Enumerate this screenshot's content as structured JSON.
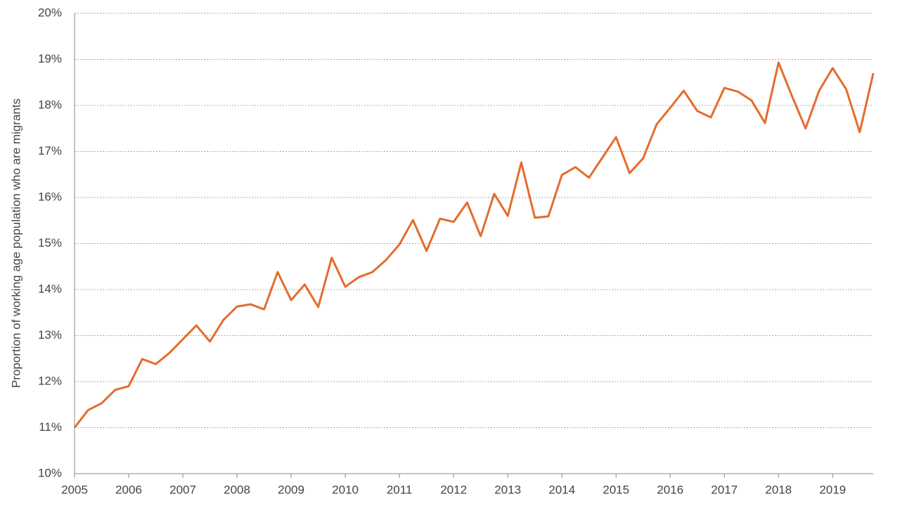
{
  "chart_data": {
    "type": "line",
    "y_label": "Proportion of working  age population who  are migrants",
    "x": [
      2005,
      2005.25,
      2005.5,
      2005.75,
      2006,
      2006.25,
      2006.5,
      2006.75,
      2007,
      2007.25,
      2007.5,
      2007.75,
      2008,
      2008.25,
      2008.5,
      2008.75,
      2009,
      2009.25,
      2009.5,
      2009.75,
      2010,
      2010.25,
      2010.5,
      2010.75,
      2011,
      2011.25,
      2011.5,
      2011.75,
      2012,
      2012.25,
      2012.5,
      2012.75,
      2013,
      2013.25,
      2013.5,
      2013.75,
      2014,
      2014.25,
      2014.5,
      2014.75,
      2015,
      2015.25,
      2015.5,
      2015.75,
      2016,
      2016.25,
      2016.5,
      2016.75,
      2017,
      2017.25,
      2017.5,
      2017.75,
      2018,
      2018.25,
      2018.5,
      2018.75,
      2019,
      2019.25,
      2019.5,
      2019.75
    ],
    "series": [
      {
        "color": "#e46c2e",
        "values": [
          11.0,
          11.38,
          11.53,
          11.82,
          11.9,
          12.49,
          12.38,
          12.62,
          12.92,
          13.22,
          12.87,
          13.34,
          13.63,
          13.68,
          13.57,
          14.38,
          13.77,
          14.11,
          13.62,
          14.69,
          14.06,
          14.27,
          14.38,
          14.64,
          14.98,
          15.51,
          14.84,
          15.54,
          15.47,
          15.89,
          15.16,
          16.08,
          15.6,
          16.76,
          15.56,
          15.59,
          16.49,
          16.66,
          16.43,
          16.87,
          17.31,
          16.53,
          16.85,
          17.59,
          17.95,
          18.32,
          17.88,
          17.74,
          18.38,
          18.3,
          18.11,
          17.62,
          18.93,
          18.2,
          17.5,
          18.32,
          18.81,
          18.35,
          17.42,
          18.7
        ]
      }
    ],
    "xlim": [
      2005,
      2019.75
    ],
    "xticks": [
      2005,
      2006,
      2007,
      2008,
      2009,
      2010,
      2011,
      2012,
      2013,
      2014,
      2015,
      2016,
      2017,
      2018,
      2019
    ],
    "ylim": [
      10,
      20
    ],
    "yticks": [
      {
        "value": 10,
        "label": "10%"
      },
      {
        "value": 11,
        "label": "11%"
      },
      {
        "value": 12,
        "label": "12%"
      },
      {
        "value": 13,
        "label": "13%"
      },
      {
        "value": 14,
        "label": "14%"
      },
      {
        "value": 15,
        "label": "15%"
      },
      {
        "value": 16,
        "label": "16%"
      },
      {
        "value": 17,
        "label": "17%"
      },
      {
        "value": 18,
        "label": "18%"
      },
      {
        "value": 19,
        "label": "19%"
      },
      {
        "value": 20,
        "label": "20%"
      }
    ],
    "grid": true
  }
}
